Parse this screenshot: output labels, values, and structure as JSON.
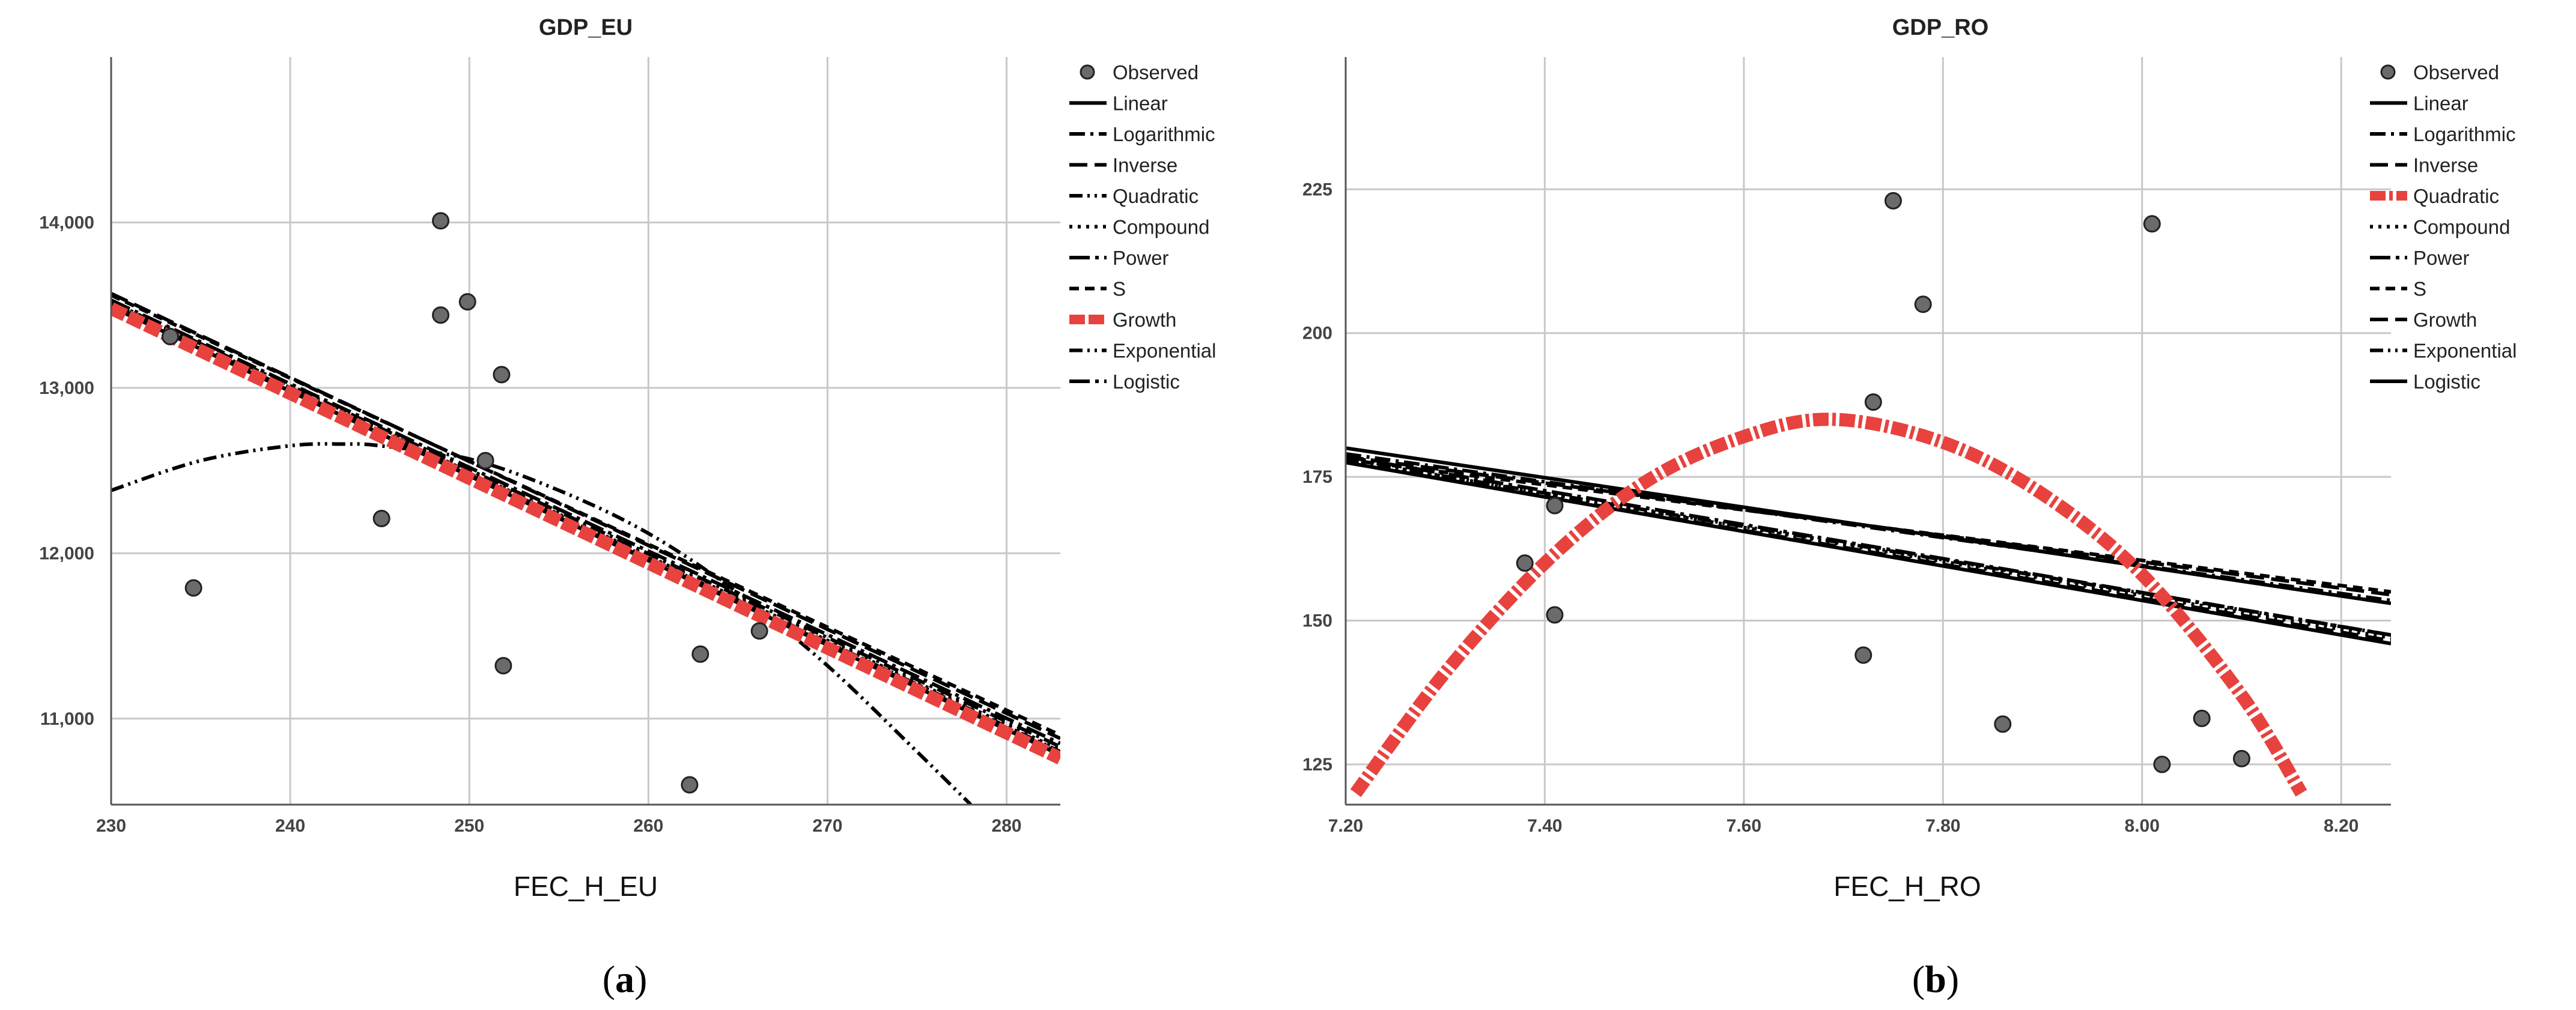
{
  "chart_data": [
    {
      "type": "scatter",
      "title": "GDP_EU",
      "xlabel": "FEC_H_EU",
      "ylabel": "",
      "caption_letter": "a",
      "xlim": [
        230,
        283
      ],
      "ylim": [
        10480,
        15000
      ],
      "x_ticks": [
        230,
        240,
        250,
        260,
        270,
        280
      ],
      "x_tick_labels": [
        "230",
        "240",
        "250",
        "260",
        "270",
        "280"
      ],
      "y_ticks": [
        11000,
        12000,
        13000,
        14000
      ],
      "y_tick_labels": [
        "11,000",
        "12,000",
        "13,000",
        "14,000"
      ],
      "grid": true,
      "legend_position": "right",
      "legend": [
        {
          "label": "Observed",
          "style": "marker"
        },
        {
          "label": "Linear",
          "style": "solid"
        },
        {
          "label": "Logarithmic",
          "style": "dashdot"
        },
        {
          "label": "Inverse",
          "style": "longdash"
        },
        {
          "label": "Quadratic",
          "style": "dashdotdot"
        },
        {
          "label": "Compound",
          "style": "dotted"
        },
        {
          "label": "Power",
          "style": "longdashdot"
        },
        {
          "label": "S",
          "style": "dashed"
        },
        {
          "label": "Growth",
          "style": "thick-red-dashed"
        },
        {
          "label": "Exponential",
          "style": "dashdotdot"
        },
        {
          "label": "Logistic",
          "style": "longdashdot"
        }
      ],
      "observed": [
        {
          "x": 234.6,
          "y": 11790
        },
        {
          "x": 233.3,
          "y": 13310
        },
        {
          "x": 245.1,
          "y": 12210
        },
        {
          "x": 248.4,
          "y": 14010
        },
        {
          "x": 248.4,
          "y": 13440
        },
        {
          "x": 249.9,
          "y": 13520
        },
        {
          "x": 250.9,
          "y": 12560
        },
        {
          "x": 251.8,
          "y": 13080
        },
        {
          "x": 251.9,
          "y": 11320
        },
        {
          "x": 262.3,
          "y": 10600
        },
        {
          "x": 262.9,
          "y": 11390
        },
        {
          "x": 266.2,
          "y": 11530
        }
      ],
      "fits": [
        {
          "label": "Linear",
          "x": [
            230,
            283
          ],
          "y": [
            13490,
            10780
          ]
        },
        {
          "label": "Logarithmic",
          "x": [
            230,
            283
          ],
          "y": [
            13520,
            10830
          ]
        },
        {
          "label": "Inverse",
          "x": [
            230,
            283
          ],
          "y": [
            13570,
            10880
          ]
        },
        {
          "label": "Compound",
          "x": [
            230,
            283
          ],
          "y": [
            13510,
            10810
          ]
        },
        {
          "label": "Power",
          "x": [
            230,
            283
          ],
          "y": [
            13530,
            10850
          ]
        },
        {
          "label": "S",
          "x": [
            230,
            283
          ],
          "y": [
            13560,
            10900
          ]
        },
        {
          "label": "Growth",
          "x": [
            230,
            283
          ],
          "y": [
            13480,
            10760
          ]
        },
        {
          "label": "Exponential",
          "x": [
            230,
            283
          ],
          "y": [
            13500,
            10800
          ]
        },
        {
          "label": "Logistic",
          "x": [
            230,
            283
          ],
          "y": [
            13490,
            10790
          ]
        },
        {
          "label": "Quadratic",
          "x": [
            230,
            235,
            240,
            243,
            245,
            250,
            255,
            260,
            265,
            270,
            275,
            278
          ],
          "y": [
            12380,
            12560,
            12650,
            12660,
            12650,
            12570,
            12380,
            12120,
            11760,
            11320,
            10800,
            10480
          ]
        }
      ]
    },
    {
      "type": "scatter",
      "title": "GDP_RO",
      "xlabel": "FEC_H_RO",
      "ylabel": "",
      "caption_letter": "b",
      "xlim": [
        7.2,
        8.25
      ],
      "ylim": [
        118,
        248
      ],
      "x_ticks": [
        7.2,
        7.4,
        7.6,
        7.8,
        8.0,
        8.2
      ],
      "x_tick_labels": [
        "7.20",
        "7.40",
        "7.60",
        "7.80",
        "8.00",
        "8.20"
      ],
      "y_ticks": [
        125,
        150,
        175,
        200,
        225
      ],
      "y_tick_labels": [
        "125",
        "150",
        "175",
        "200",
        "225"
      ],
      "grid": true,
      "legend_position": "right",
      "legend": [
        {
          "label": "Observed",
          "style": "marker"
        },
        {
          "label": "Linear",
          "style": "solid"
        },
        {
          "label": "Logarithmic",
          "style": "dashdot"
        },
        {
          "label": "Inverse",
          "style": "longdash"
        },
        {
          "label": "Quadratic",
          "style": "thick-red-dashdot"
        },
        {
          "label": "Compound",
          "style": "dotted"
        },
        {
          "label": "Power",
          "style": "longdashdot"
        },
        {
          "label": "S",
          "style": "dashed"
        },
        {
          "label": "Growth",
          "style": "longdash"
        },
        {
          "label": "Exponential",
          "style": "dashdotdot"
        },
        {
          "label": "Logistic",
          "style": "solid"
        }
      ],
      "observed": [
        {
          "x": 7.38,
          "y": 160
        },
        {
          "x": 7.41,
          "y": 170
        },
        {
          "x": 7.41,
          "y": 151
        },
        {
          "x": 7.72,
          "y": 144
        },
        {
          "x": 7.73,
          "y": 188
        },
        {
          "x": 7.75,
          "y": 223
        },
        {
          "x": 7.78,
          "y": 205
        },
        {
          "x": 7.86,
          "y": 132
        },
        {
          "x": 8.01,
          "y": 219
        },
        {
          "x": 8.02,
          "y": 125
        },
        {
          "x": 8.06,
          "y": 133
        },
        {
          "x": 8.1,
          "y": 126
        }
      ],
      "fits": [
        {
          "label": "Linear",
          "x": [
            7.2,
            8.25
          ],
          "y": [
            180,
            153
          ]
        },
        {
          "label": "Logarithmic",
          "x": [
            7.2,
            8.25
          ],
          "y": [
            179,
            153.5
          ]
        },
        {
          "label": "Inverse",
          "x": [
            7.2,
            8.25
          ],
          "y": [
            178.5,
            154.5
          ]
        },
        {
          "label": "Compound",
          "x": [
            7.2,
            8.25
          ],
          "y": [
            178,
            147
          ]
        },
        {
          "label": "Power",
          "x": [
            7.2,
            8.25
          ],
          "y": [
            178.5,
            147.5
          ]
        },
        {
          "label": "S",
          "x": [
            7.2,
            8.25
          ],
          "y": [
            178,
            155
          ]
        },
        {
          "label": "Growth",
          "x": [
            7.2,
            8.25
          ],
          "y": [
            177.5,
            146.5
          ]
        },
        {
          "label": "Exponential",
          "x": [
            7.2,
            8.25
          ],
          "y": [
            178,
            147.5
          ]
        },
        {
          "label": "Logistic",
          "x": [
            7.2,
            8.25
          ],
          "y": [
            177.5,
            146
          ]
        },
        {
          "label": "Quadratic",
          "x": [
            7.21,
            7.3,
            7.4,
            7.5,
            7.6,
            7.69,
            7.8,
            7.9,
            8.0,
            8.1,
            8.16
          ],
          "y": [
            120,
            141,
            160,
            174,
            182,
            185,
            181,
            172,
            158,
            137,
            120
          ]
        }
      ]
    }
  ]
}
